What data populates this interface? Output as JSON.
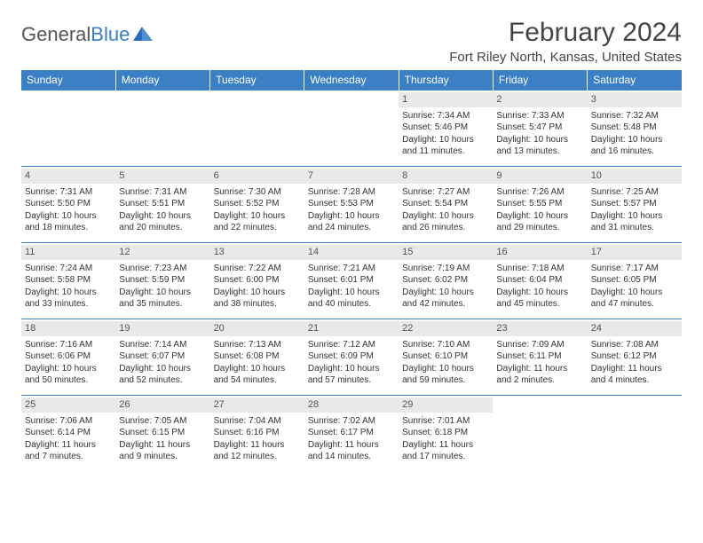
{
  "brand": {
    "name_a": "General",
    "name_b": "Blue"
  },
  "title": "February 2024",
  "location": "Fort Riley North, Kansas, United States",
  "colors": {
    "header_bg": "#3b7fc4",
    "header_text": "#ffffff",
    "daynum_bg": "#e9e9e9",
    "body_text": "#333333",
    "rule": "#3b7fc4",
    "page_bg": "#ffffff"
  },
  "day_headers": [
    "Sunday",
    "Monday",
    "Tuesday",
    "Wednesday",
    "Thursday",
    "Friday",
    "Saturday"
  ],
  "weeks": [
    [
      null,
      null,
      null,
      null,
      {
        "n": "1",
        "sr": "Sunrise: 7:34 AM",
        "ss": "Sunset: 5:46 PM",
        "dl": "Daylight: 10 hours and 11 minutes."
      },
      {
        "n": "2",
        "sr": "Sunrise: 7:33 AM",
        "ss": "Sunset: 5:47 PM",
        "dl": "Daylight: 10 hours and 13 minutes."
      },
      {
        "n": "3",
        "sr": "Sunrise: 7:32 AM",
        "ss": "Sunset: 5:48 PM",
        "dl": "Daylight: 10 hours and 16 minutes."
      }
    ],
    [
      {
        "n": "4",
        "sr": "Sunrise: 7:31 AM",
        "ss": "Sunset: 5:50 PM",
        "dl": "Daylight: 10 hours and 18 minutes."
      },
      {
        "n": "5",
        "sr": "Sunrise: 7:31 AM",
        "ss": "Sunset: 5:51 PM",
        "dl": "Daylight: 10 hours and 20 minutes."
      },
      {
        "n": "6",
        "sr": "Sunrise: 7:30 AM",
        "ss": "Sunset: 5:52 PM",
        "dl": "Daylight: 10 hours and 22 minutes."
      },
      {
        "n": "7",
        "sr": "Sunrise: 7:28 AM",
        "ss": "Sunset: 5:53 PM",
        "dl": "Daylight: 10 hours and 24 minutes."
      },
      {
        "n": "8",
        "sr": "Sunrise: 7:27 AM",
        "ss": "Sunset: 5:54 PM",
        "dl": "Daylight: 10 hours and 26 minutes."
      },
      {
        "n": "9",
        "sr": "Sunrise: 7:26 AM",
        "ss": "Sunset: 5:55 PM",
        "dl": "Daylight: 10 hours and 29 minutes."
      },
      {
        "n": "10",
        "sr": "Sunrise: 7:25 AM",
        "ss": "Sunset: 5:57 PM",
        "dl": "Daylight: 10 hours and 31 minutes."
      }
    ],
    [
      {
        "n": "11",
        "sr": "Sunrise: 7:24 AM",
        "ss": "Sunset: 5:58 PM",
        "dl": "Daylight: 10 hours and 33 minutes."
      },
      {
        "n": "12",
        "sr": "Sunrise: 7:23 AM",
        "ss": "Sunset: 5:59 PM",
        "dl": "Daylight: 10 hours and 35 minutes."
      },
      {
        "n": "13",
        "sr": "Sunrise: 7:22 AM",
        "ss": "Sunset: 6:00 PM",
        "dl": "Daylight: 10 hours and 38 minutes."
      },
      {
        "n": "14",
        "sr": "Sunrise: 7:21 AM",
        "ss": "Sunset: 6:01 PM",
        "dl": "Daylight: 10 hours and 40 minutes."
      },
      {
        "n": "15",
        "sr": "Sunrise: 7:19 AM",
        "ss": "Sunset: 6:02 PM",
        "dl": "Daylight: 10 hours and 42 minutes."
      },
      {
        "n": "16",
        "sr": "Sunrise: 7:18 AM",
        "ss": "Sunset: 6:04 PM",
        "dl": "Daylight: 10 hours and 45 minutes."
      },
      {
        "n": "17",
        "sr": "Sunrise: 7:17 AM",
        "ss": "Sunset: 6:05 PM",
        "dl": "Daylight: 10 hours and 47 minutes."
      }
    ],
    [
      {
        "n": "18",
        "sr": "Sunrise: 7:16 AM",
        "ss": "Sunset: 6:06 PM",
        "dl": "Daylight: 10 hours and 50 minutes."
      },
      {
        "n": "19",
        "sr": "Sunrise: 7:14 AM",
        "ss": "Sunset: 6:07 PM",
        "dl": "Daylight: 10 hours and 52 minutes."
      },
      {
        "n": "20",
        "sr": "Sunrise: 7:13 AM",
        "ss": "Sunset: 6:08 PM",
        "dl": "Daylight: 10 hours and 54 minutes."
      },
      {
        "n": "21",
        "sr": "Sunrise: 7:12 AM",
        "ss": "Sunset: 6:09 PM",
        "dl": "Daylight: 10 hours and 57 minutes."
      },
      {
        "n": "22",
        "sr": "Sunrise: 7:10 AM",
        "ss": "Sunset: 6:10 PM",
        "dl": "Daylight: 10 hours and 59 minutes."
      },
      {
        "n": "23",
        "sr": "Sunrise: 7:09 AM",
        "ss": "Sunset: 6:11 PM",
        "dl": "Daylight: 11 hours and 2 minutes."
      },
      {
        "n": "24",
        "sr": "Sunrise: 7:08 AM",
        "ss": "Sunset: 6:12 PM",
        "dl": "Daylight: 11 hours and 4 minutes."
      }
    ],
    [
      {
        "n": "25",
        "sr": "Sunrise: 7:06 AM",
        "ss": "Sunset: 6:14 PM",
        "dl": "Daylight: 11 hours and 7 minutes."
      },
      {
        "n": "26",
        "sr": "Sunrise: 7:05 AM",
        "ss": "Sunset: 6:15 PM",
        "dl": "Daylight: 11 hours and 9 minutes."
      },
      {
        "n": "27",
        "sr": "Sunrise: 7:04 AM",
        "ss": "Sunset: 6:16 PM",
        "dl": "Daylight: 11 hours and 12 minutes."
      },
      {
        "n": "28",
        "sr": "Sunrise: 7:02 AM",
        "ss": "Sunset: 6:17 PM",
        "dl": "Daylight: 11 hours and 14 minutes."
      },
      {
        "n": "29",
        "sr": "Sunrise: 7:01 AM",
        "ss": "Sunset: 6:18 PM",
        "dl": "Daylight: 11 hours and 17 minutes."
      },
      null,
      null
    ]
  ]
}
